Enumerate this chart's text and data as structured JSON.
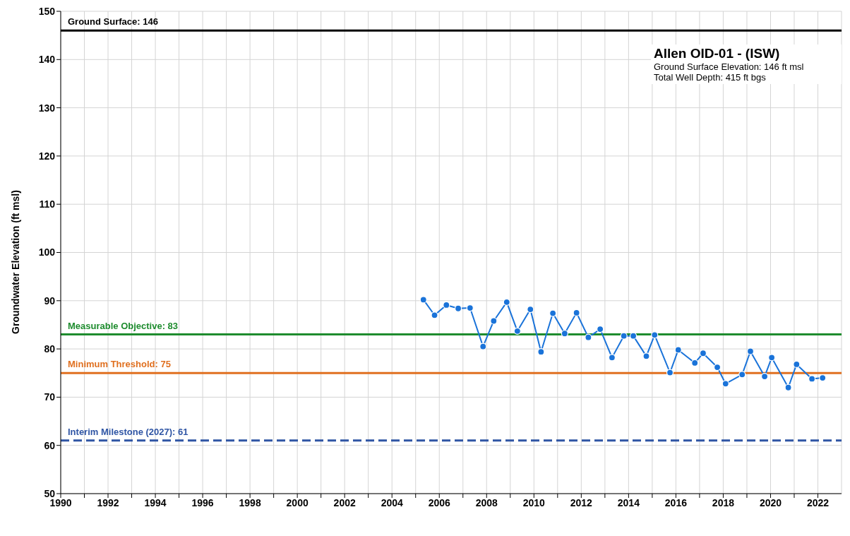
{
  "chart_data": {
    "type": "line",
    "title": "Allen OID-01 - (ISW)",
    "ylabel": "Groundwater Elevation (ft msl)",
    "annotations": [
      "Ground Surface Elevation: 146 ft msl",
      "Total Well Depth: 415 ft bgs"
    ],
    "x": [
      2005.33,
      2005.8,
      2006.3,
      2006.8,
      2007.3,
      2007.85,
      2008.3,
      2008.85,
      2009.3,
      2009.85,
      2010.3,
      2010.8,
      2011.3,
      2011.8,
      2012.3,
      2012.8,
      2013.3,
      2013.8,
      2014.2,
      2014.75,
      2015.1,
      2015.75,
      2016.1,
      2016.8,
      2017.15,
      2017.75,
      2018.1,
      2018.8,
      2019.15,
      2019.75,
      2020.05,
      2020.75,
      2021.1,
      2021.75,
      2022.2
    ],
    "series": [
      {
        "color": "#1a73d9",
        "values": [
          90.2,
          87.0,
          89.1,
          88.4,
          88.5,
          80.5,
          85.8,
          89.7,
          83.7,
          88.2,
          79.4,
          87.4,
          83.2,
          87.5,
          82.4,
          84.1,
          78.2,
          82.7,
          82.7,
          78.5,
          82.9,
          75.1,
          79.8,
          77.1,
          79.1,
          76.2,
          72.8,
          74.7,
          79.5,
          74.3,
          78.2,
          72.0,
          76.8,
          73.8,
          74.0
        ]
      }
    ],
    "xlim": [
      1990,
      2023
    ],
    "xticks": [
      1990,
      {
        "value": 1991,
        "label": null
      },
      1992,
      {
        "value": 1993,
        "label": null
      },
      1994,
      {
        "value": 1995,
        "label": null
      },
      1996,
      {
        "value": 1997,
        "label": null
      },
      1998,
      {
        "value": 1999,
        "label": null
      },
      2000,
      {
        "value": 2001,
        "label": null
      },
      2002,
      {
        "value": 2003,
        "label": null
      },
      2004,
      {
        "value": 2005,
        "label": null
      },
      2006,
      {
        "value": 2007,
        "label": null
      },
      2008,
      {
        "value": 2009,
        "label": null
      },
      2010,
      {
        "value": 2011,
        "label": null
      },
      2012,
      {
        "value": 2013,
        "label": null
      },
      2014,
      {
        "value": 2015,
        "label": null
      },
      2016,
      {
        "value": 2017,
        "label": null
      },
      2018,
      {
        "value": 2019,
        "label": null
      },
      2020,
      {
        "value": 2021,
        "label": null
      },
      2022
    ],
    "ylim": [
      50,
      150
    ],
    "yticks": [
      50,
      60,
      70,
      80,
      90,
      100,
      110,
      120,
      130,
      140,
      150
    ],
    "grid": true,
    "marker": "circle",
    "line_style": "solid",
    "ref_lines": [
      {
        "axis": "y",
        "value": 146,
        "label": "Ground Surface: 146",
        "color": "#000000",
        "line_style": "solid"
      },
      {
        "axis": "y",
        "value": 83,
        "label": "Measurable Objective: 83",
        "color": "#1e8c2e",
        "line_style": "solid"
      },
      {
        "axis": "y",
        "value": 75,
        "label": "Minimum  Threshold: 75",
        "color": "#e07020",
        "line_style": "solid"
      },
      {
        "axis": "y",
        "value": 61,
        "label": "Interim Milestone (2027): 61",
        "color": "#2f55a4",
        "line_style": "dashed"
      }
    ]
  }
}
